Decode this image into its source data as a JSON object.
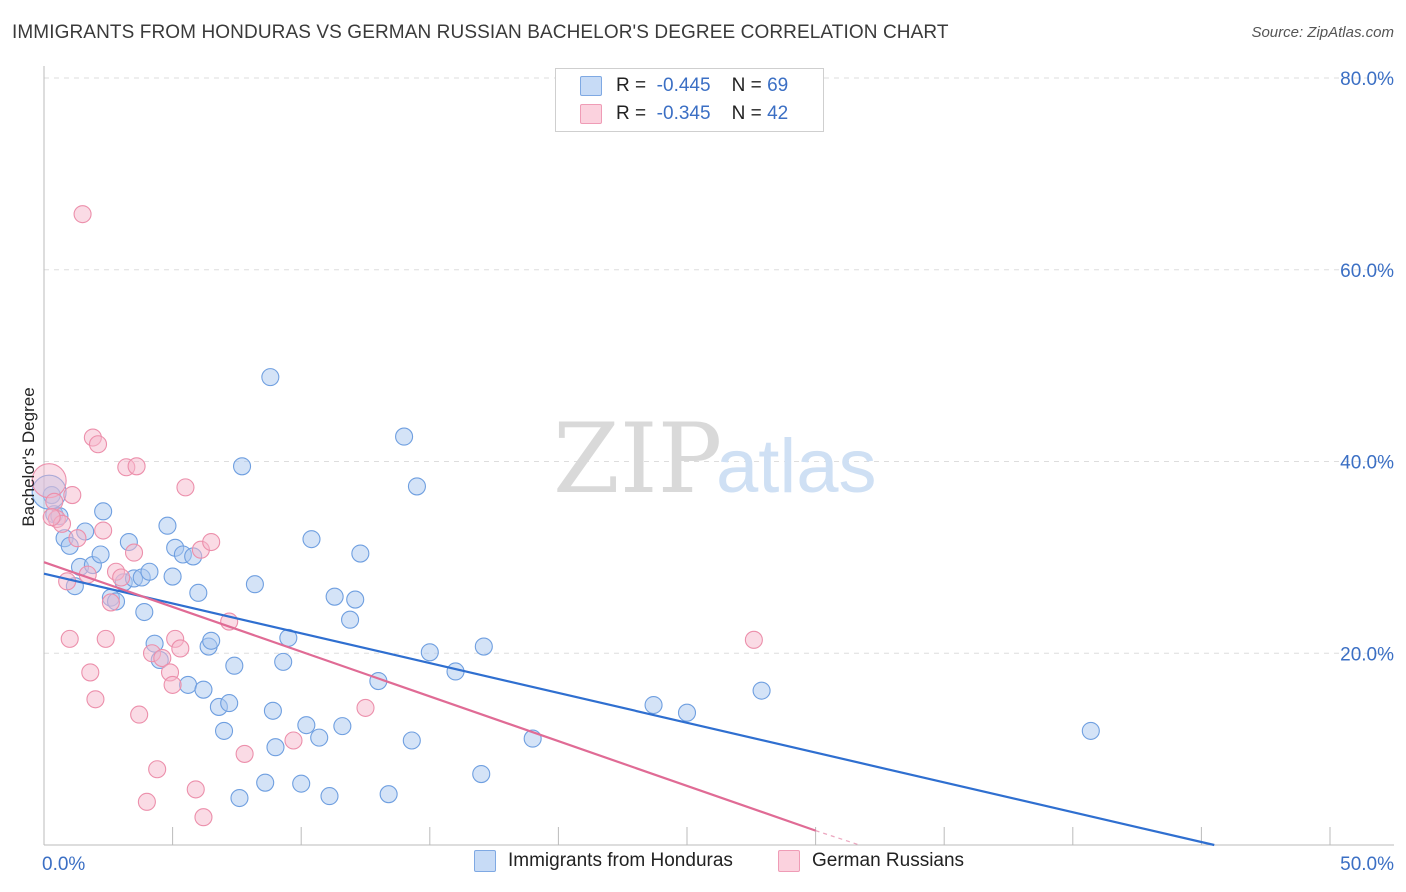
{
  "header": {
    "title": "IMMIGRANTS FROM HONDURAS VS GERMAN RUSSIAN BACHELOR'S DEGREE CORRELATION CHART",
    "source": "Source: ZipAtlas.com"
  },
  "legend": {
    "rows": [
      {
        "r_label": "R =",
        "r_value": "-0.445",
        "n_label": "N =",
        "n_value": "69",
        "color": "#a9c8f0"
      },
      {
        "r_label": "R =",
        "r_value": "-0.345",
        "n_label": "N =",
        "n_value": "42",
        "color": "#f5b8cb"
      }
    ]
  },
  "watermark": {
    "zip": "ZIP",
    "atlas": "atlas"
  },
  "chart_data": {
    "type": "scatter",
    "title": "IMMIGRANTS FROM HONDURAS VS GERMAN RUSSIAN BACHELOR'S DEGREE CORRELATION CHART",
    "xlabel": "",
    "ylabel": "Bachelor's Degree",
    "xlim": [
      0,
      50
    ],
    "ylim": [
      0,
      80
    ],
    "x_tick_labels": [
      "0.0%",
      "50.0%"
    ],
    "y_tick_labels": [
      "20.0%",
      "40.0%",
      "60.0%",
      "80.0%"
    ],
    "y_ticks": [
      20,
      40,
      60,
      80
    ],
    "grid": true,
    "series": [
      {
        "name": "Immigrants from Honduras",
        "color": "#a9c8f0",
        "stroke": "#6f9fe0",
        "line_color": "#2f6fd0",
        "trend": {
          "x0": 0,
          "y0": 28.3,
          "x1": 45.5,
          "y1": 0
        },
        "points": [
          [
            0.3,
            36.5
          ],
          [
            0.4,
            34.5
          ],
          [
            0.6,
            34.3
          ],
          [
            0.8,
            32.0
          ],
          [
            1.0,
            31.2
          ],
          [
            1.2,
            27.0
          ],
          [
            1.4,
            29.0
          ],
          [
            1.6,
            32.7
          ],
          [
            1.9,
            29.2
          ],
          [
            2.2,
            30.3
          ],
          [
            2.3,
            34.8
          ],
          [
            2.6,
            25.8
          ],
          [
            2.8,
            25.4
          ],
          [
            3.1,
            27.4
          ],
          [
            3.3,
            31.6
          ],
          [
            3.5,
            27.8
          ],
          [
            3.8,
            27.9
          ],
          [
            3.9,
            24.3
          ],
          [
            4.1,
            28.5
          ],
          [
            4.3,
            21.0
          ],
          [
            4.5,
            19.3
          ],
          [
            4.8,
            33.3
          ],
          [
            5.0,
            28.0
          ],
          [
            5.1,
            31.0
          ],
          [
            5.4,
            30.3
          ],
          [
            5.6,
            16.7
          ],
          [
            5.8,
            30.1
          ],
          [
            6.0,
            26.3
          ],
          [
            6.2,
            16.2
          ],
          [
            6.4,
            20.7
          ],
          [
            6.5,
            21.3
          ],
          [
            6.8,
            14.4
          ],
          [
            7.0,
            11.9
          ],
          [
            7.2,
            14.8
          ],
          [
            7.4,
            18.7
          ],
          [
            7.6,
            4.9
          ],
          [
            7.7,
            39.5
          ],
          [
            8.2,
            27.2
          ],
          [
            8.6,
            6.5
          ],
          [
            8.8,
            48.8
          ],
          [
            8.9,
            14.0
          ],
          [
            9.0,
            10.2
          ],
          [
            9.3,
            19.1
          ],
          [
            9.5,
            21.6
          ],
          [
            10.0,
            6.4
          ],
          [
            10.2,
            12.5
          ],
          [
            10.4,
            31.9
          ],
          [
            10.7,
            11.2
          ],
          [
            11.1,
            5.1
          ],
          [
            11.3,
            25.9
          ],
          [
            11.6,
            12.4
          ],
          [
            11.9,
            23.5
          ],
          [
            12.1,
            25.6
          ],
          [
            12.3,
            30.4
          ],
          [
            13.0,
            17.1
          ],
          [
            13.4,
            5.3
          ],
          [
            14.0,
            42.6
          ],
          [
            14.3,
            10.9
          ],
          [
            14.5,
            37.4
          ],
          [
            15.0,
            20.1
          ],
          [
            16.0,
            18.1
          ],
          [
            17.0,
            7.4
          ],
          [
            17.1,
            20.7
          ],
          [
            19.0,
            11.1
          ],
          [
            23.7,
            14.6
          ],
          [
            25.0,
            13.8
          ],
          [
            27.9,
            16.1
          ],
          [
            40.7,
            11.9
          ],
          [
            0.2,
            36.8
          ]
        ]
      },
      {
        "name": "German Russians",
        "color": "#f5b8cb",
        "stroke": "#ec8fab",
        "line_color": "#e06b95",
        "trend": {
          "x0": 0,
          "y0": 29.5,
          "x1": 30,
          "y1": 1.5
        },
        "trend_dash": {
          "x0": 30,
          "y0": 1.5,
          "x1": 31.7,
          "y1": 0
        },
        "points": [
          [
            0.2,
            38.0
          ],
          [
            0.4,
            35.8
          ],
          [
            0.5,
            34.0
          ],
          [
            0.7,
            33.5
          ],
          [
            0.9,
            27.5
          ],
          [
            1.0,
            21.5
          ],
          [
            1.1,
            36.5
          ],
          [
            1.3,
            32.0
          ],
          [
            1.5,
            65.8
          ],
          [
            1.7,
            28.2
          ],
          [
            1.8,
            18.0
          ],
          [
            1.9,
            42.5
          ],
          [
            2.0,
            15.2
          ],
          [
            2.1,
            41.8
          ],
          [
            2.3,
            32.8
          ],
          [
            2.4,
            21.5
          ],
          [
            2.6,
            25.3
          ],
          [
            2.8,
            28.5
          ],
          [
            3.0,
            27.9
          ],
          [
            3.2,
            39.4
          ],
          [
            3.5,
            30.5
          ],
          [
            3.6,
            39.5
          ],
          [
            3.7,
            13.6
          ],
          [
            4.0,
            4.5
          ],
          [
            4.2,
            20.0
          ],
          [
            4.4,
            7.9
          ],
          [
            4.6,
            19.5
          ],
          [
            4.9,
            18.0
          ],
          [
            5.0,
            16.7
          ],
          [
            5.1,
            21.5
          ],
          [
            5.3,
            20.5
          ],
          [
            5.5,
            37.3
          ],
          [
            5.9,
            5.8
          ],
          [
            6.1,
            30.8
          ],
          [
            6.2,
            2.9
          ],
          [
            6.5,
            31.6
          ],
          [
            7.2,
            23.3
          ],
          [
            7.8,
            9.5
          ],
          [
            9.7,
            10.9
          ],
          [
            12.5,
            14.3
          ],
          [
            27.6,
            21.4
          ],
          [
            0.3,
            34.2
          ]
        ]
      }
    ]
  }
}
